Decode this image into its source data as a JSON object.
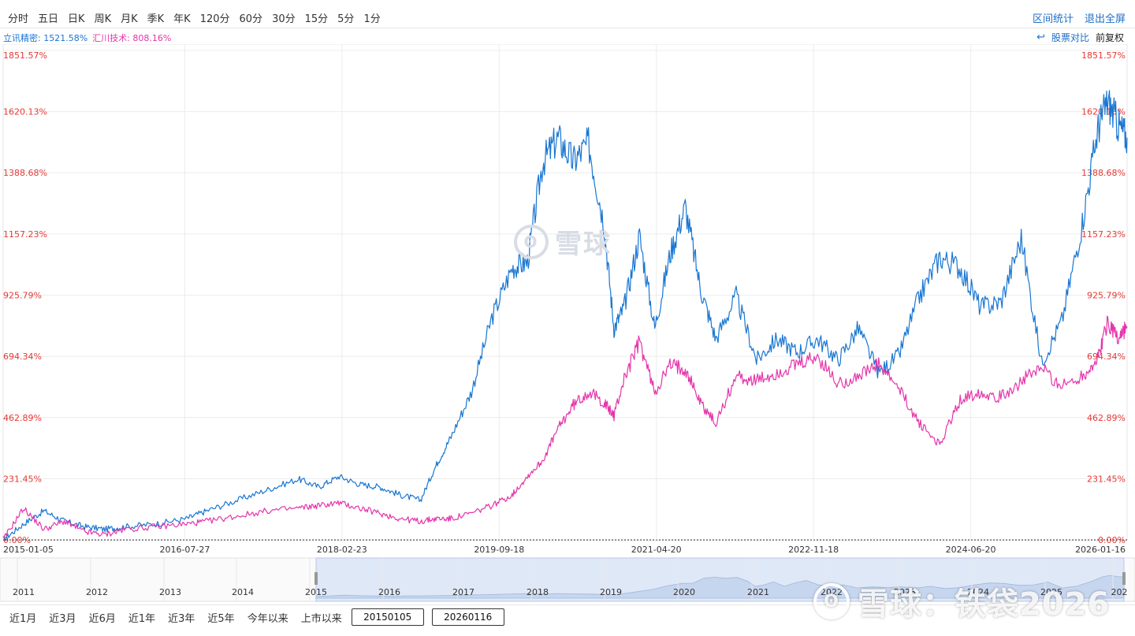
{
  "toolbar": {
    "periods": [
      "分时",
      "五日",
      "日K",
      "周K",
      "月K",
      "季K",
      "年K",
      "120分",
      "60分",
      "30分",
      "15分",
      "5分",
      "1分"
    ],
    "interval_stats": "区间统计",
    "exit_fullscreen": "退出全屏"
  },
  "legend": {
    "series1": "立讯精密: 1521.58%",
    "series2": "汇川技术: 808.16%"
  },
  "compare": {
    "undo_icon": "↩",
    "stock_compare": "股票对比",
    "adjust": "前复权"
  },
  "chart_data": {
    "type": "line",
    "y_ticks": [
      "1851.57%",
      "1620.13%",
      "1388.68%",
      "1157.23%",
      "925.79%",
      "694.34%",
      "462.89%",
      "231.45%",
      "0.00%"
    ],
    "y_tick_values": [
      1851.57,
      1620.13,
      1388.68,
      1157.23,
      925.79,
      694.34,
      462.89,
      231.45,
      0
    ],
    "ylim": [
      0,
      1851.57
    ],
    "x_ticks": [
      "2015-01-05",
      "2016-07-27",
      "2018-02-23",
      "2019-09-18",
      "2021-04-20",
      "2022-11-18",
      "2024-06-20",
      "2026-01-16"
    ],
    "x_range": [
      2015.0,
      2026.04
    ],
    "series": [
      {
        "name": "立讯精密",
        "color": "#1976d2",
        "x": [
          2015.0,
          2015.2,
          2015.4,
          2015.6,
          2015.8,
          2016.0,
          2016.2,
          2016.5,
          2016.8,
          2017.0,
          2017.3,
          2017.6,
          2017.9,
          2018.1,
          2018.3,
          2018.5,
          2018.7,
          2018.9,
          2019.1,
          2019.25,
          2019.4,
          2019.6,
          2019.8,
          2020.0,
          2020.15,
          2020.3,
          2020.45,
          2020.6,
          2020.75,
          2020.9,
          2021.0,
          2021.1,
          2021.25,
          2021.4,
          2021.55,
          2021.7,
          2021.85,
          2022.0,
          2022.2,
          2022.4,
          2022.6,
          2022.8,
          2023.0,
          2023.2,
          2023.4,
          2023.6,
          2023.8,
          2024.0,
          2024.2,
          2024.4,
          2024.6,
          2024.8,
          2025.0,
          2025.2,
          2025.4,
          2025.6,
          2025.75,
          2025.85,
          2025.95,
          2026.04
        ],
        "y": [
          0,
          60,
          110,
          70,
          50,
          40,
          50,
          60,
          80,
          110,
          150,
          190,
          230,
          200,
          240,
          210,
          200,
          170,
          150,
          280,
          390,
          560,
          840,
          1030,
          1050,
          1430,
          1520,
          1430,
          1500,
          1200,
          800,
          880,
          1150,
          800,
          1080,
          1260,
          950,
          760,
          920,
          680,
          760,
          710,
          760,
          680,
          800,
          630,
          700,
          920,
          1070,
          1030,
          880,
          900,
          1140,
          670,
          830,
          1200,
          1550,
          1660,
          1570,
          1521.58
        ]
      },
      {
        "name": "汇川技术",
        "color": "#e535ab",
        "x": [
          2015.0,
          2015.2,
          2015.4,
          2015.6,
          2015.8,
          2016.0,
          2016.2,
          2016.5,
          2016.8,
          2017.0,
          2017.3,
          2017.6,
          2017.9,
          2018.1,
          2018.3,
          2018.5,
          2018.7,
          2018.9,
          2019.1,
          2019.25,
          2019.4,
          2019.6,
          2019.8,
          2020.0,
          2020.15,
          2020.3,
          2020.45,
          2020.6,
          2020.75,
          2020.9,
          2021.0,
          2021.1,
          2021.25,
          2021.4,
          2021.55,
          2021.7,
          2021.85,
          2022.0,
          2022.2,
          2022.4,
          2022.6,
          2022.8,
          2023.0,
          2023.2,
          2023.4,
          2023.6,
          2023.8,
          2024.0,
          2024.2,
          2024.4,
          2024.6,
          2024.8,
          2025.0,
          2025.2,
          2025.4,
          2025.6,
          2025.75,
          2025.85,
          2025.95,
          2026.04
        ],
        "y": [
          0,
          120,
          40,
          70,
          30,
          20,
          40,
          50,
          60,
          70,
          90,
          110,
          120,
          130,
          140,
          120,
          100,
          80,
          70,
          80,
          80,
          100,
          130,
          170,
          240,
          300,
          420,
          510,
          560,
          520,
          470,
          610,
          750,
          560,
          660,
          650,
          520,
          440,
          620,
          600,
          630,
          660,
          690,
          590,
          620,
          660,
          570,
          440,
          360,
          530,
          560,
          540,
          600,
          650,
          580,
          620,
          680,
          830,
          760,
          808.16
        ]
      }
    ]
  },
  "navigator": {
    "years": [
      "2011",
      "2012",
      "2013",
      "2014",
      "2015",
      "2016",
      "2017",
      "2018",
      "2019",
      "2020",
      "2021",
      "2022",
      "2023",
      "2024",
      "2025",
      "202"
    ]
  },
  "bottom": {
    "ranges": [
      "近1月",
      "近3月",
      "近6月",
      "近1年",
      "近3年",
      "近5年",
      "今年以来",
      "上市以来"
    ],
    "start_date": "20150105",
    "end_date": "20260116"
  },
  "watermark": {
    "center": "雪球",
    "center_icon": "ʘ",
    "brand": "雪球：铁袋2026",
    "brand_icon": "ʘ"
  }
}
